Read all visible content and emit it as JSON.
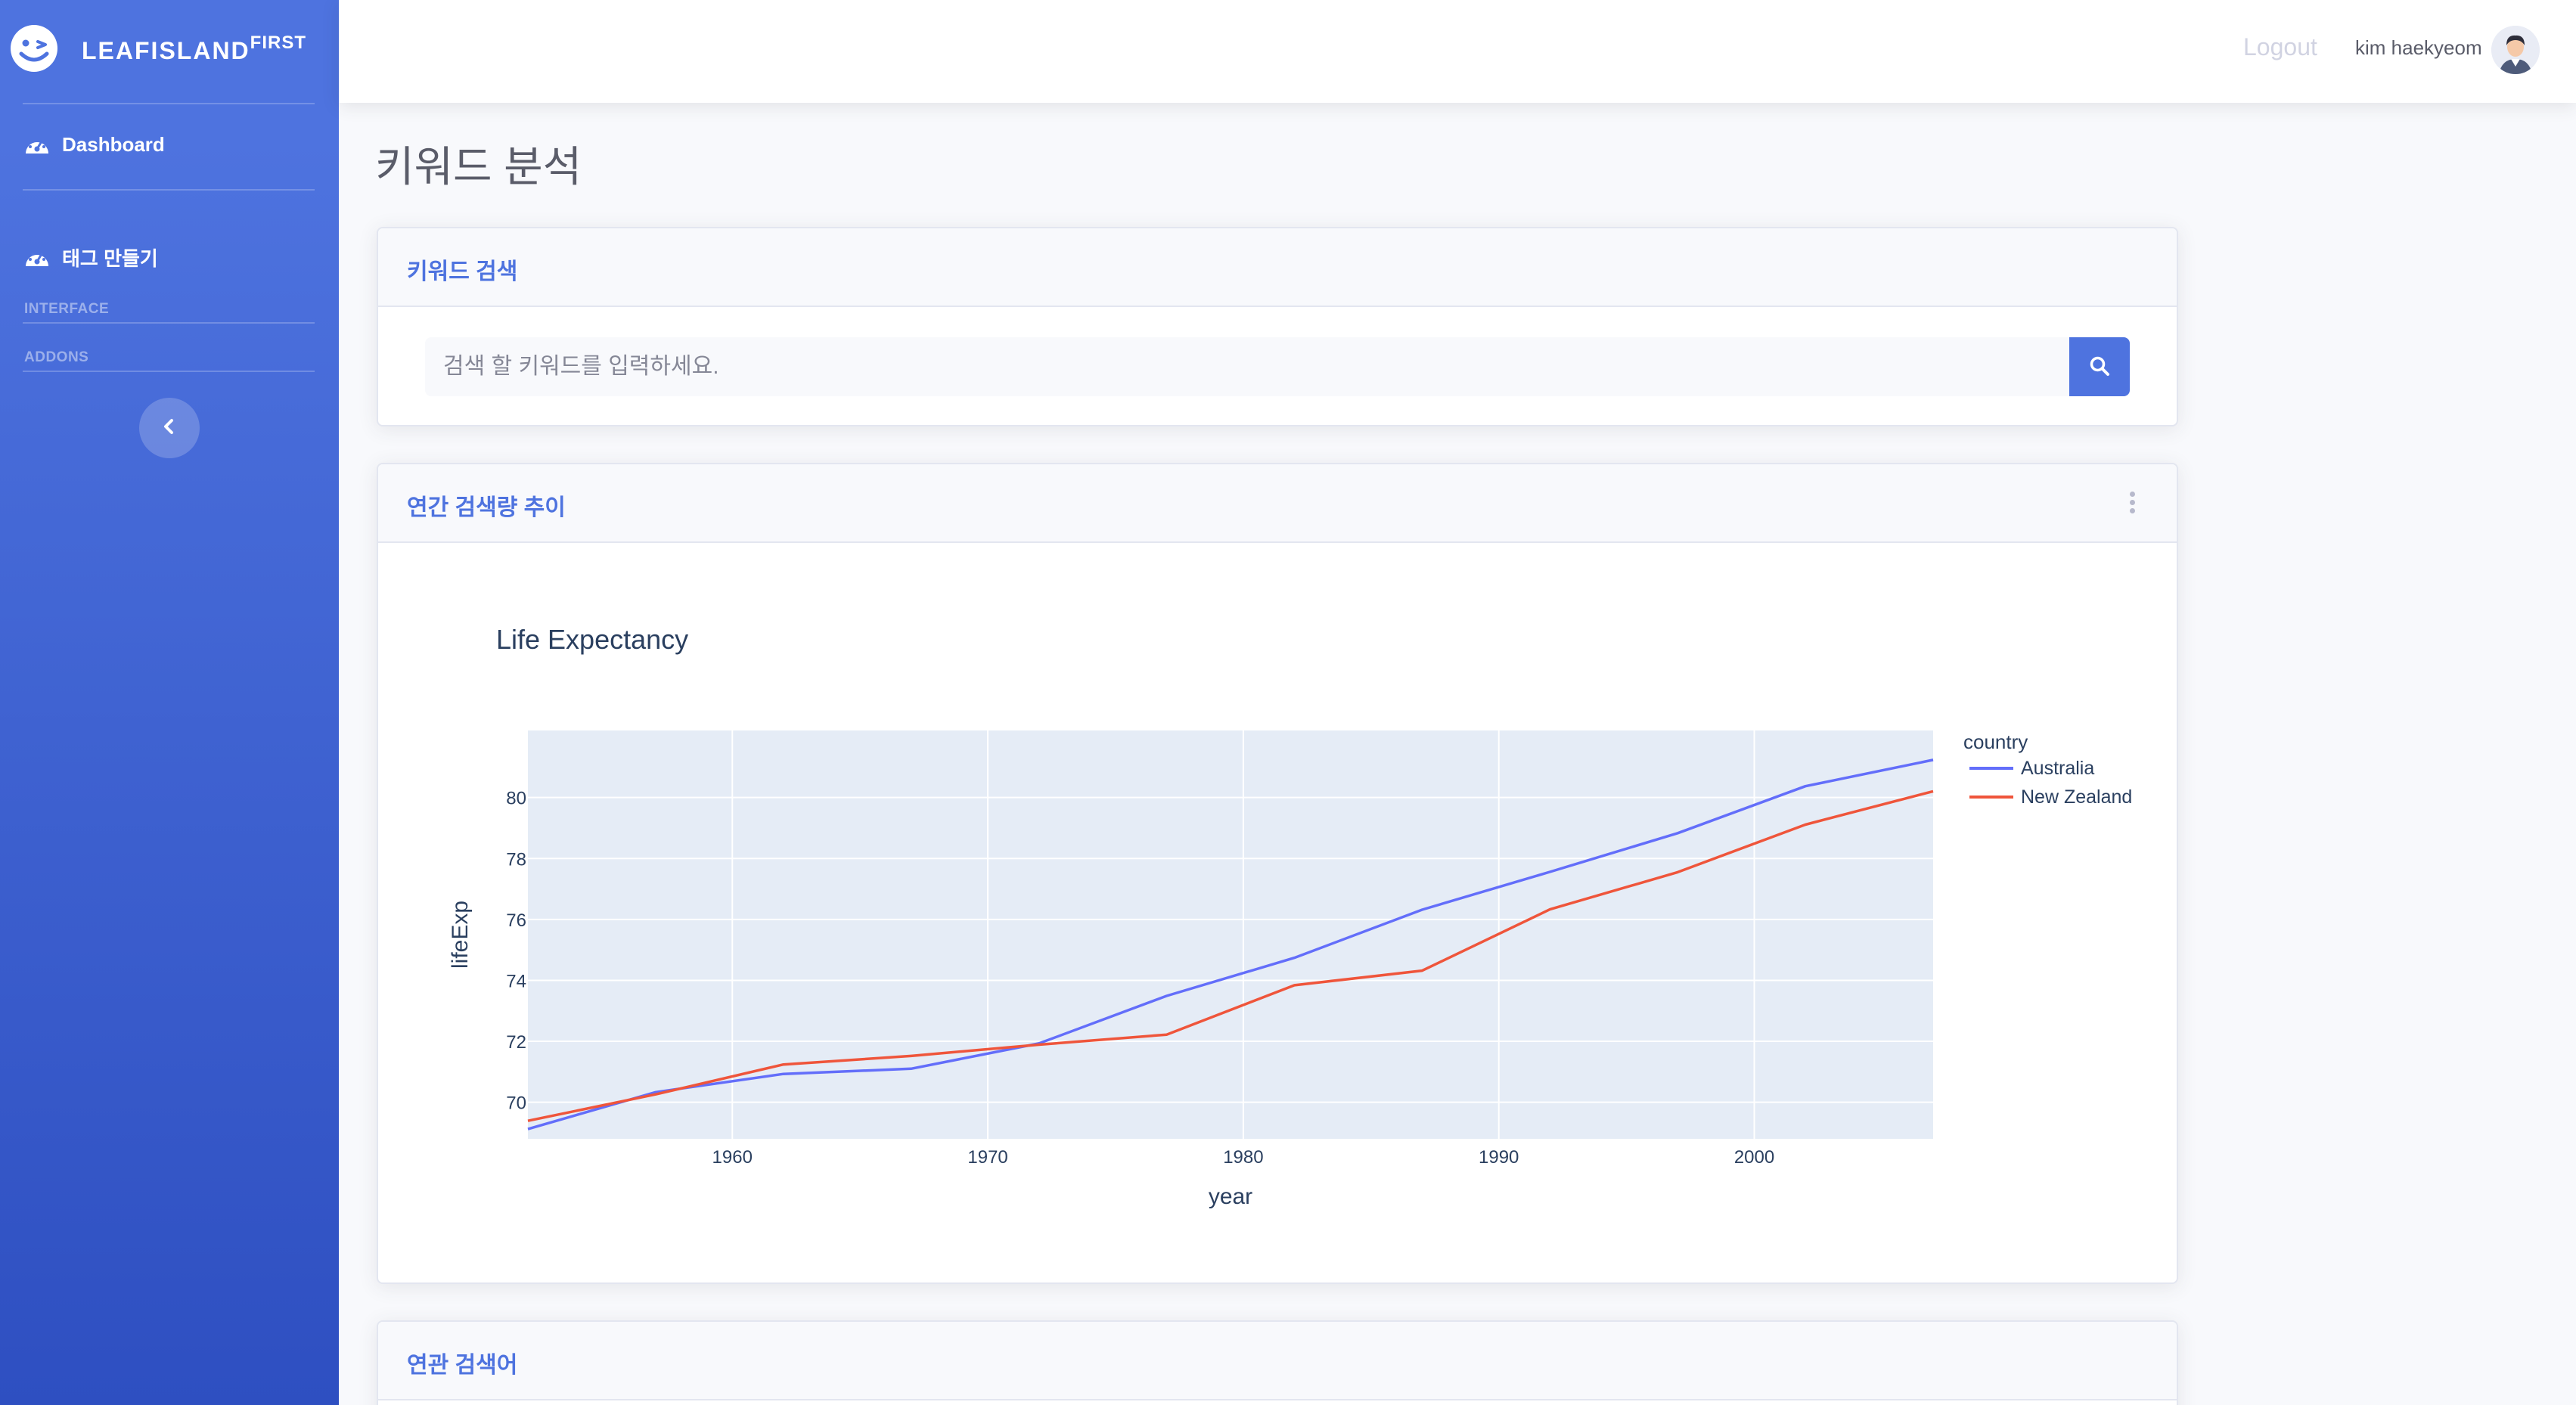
{
  "brand": {
    "name": "LEAFISLAND",
    "suffix": "FIRST"
  },
  "sidebar": {
    "items": [
      {
        "label": "Dashboard",
        "icon": "tachometer-icon"
      },
      {
        "label": "태그 만들기",
        "icon": "tachometer-icon"
      }
    ],
    "headings": [
      "INTERFACE",
      "ADDONS"
    ],
    "toggle_icon": "chevron-left-icon"
  },
  "topbar": {
    "logout": "Logout",
    "username": "kim haekyeom"
  },
  "page": {
    "title": "키워드 분석"
  },
  "search_card": {
    "title": "키워드 검색",
    "placeholder": "검색 할 키워드를 입력하세요.",
    "button_icon": "search-icon"
  },
  "trend_card": {
    "title": "연간 검색량 추이"
  },
  "related_card": {
    "title": "연관 검색어"
  },
  "colors": {
    "primary": "#4e73df",
    "australia": "#636efa",
    "new_zealand": "#ef553b",
    "plot_bg": "#e5ecf6"
  },
  "chart_data": {
    "type": "line",
    "title": "Life Expectancy",
    "xlabel": "year",
    "ylabel": "lifeExp",
    "xlim": [
      1952,
      2007
    ],
    "ylim": [
      68.8,
      82.2
    ],
    "xticks": [
      1960,
      1970,
      1980,
      1990,
      2000
    ],
    "yticks": [
      70,
      72,
      74,
      76,
      78,
      80
    ],
    "legend": {
      "title": "country",
      "position": "right"
    },
    "grid": true,
    "x": [
      1952,
      1957,
      1962,
      1967,
      1972,
      1977,
      1982,
      1987,
      1992,
      1997,
      2002,
      2007
    ],
    "series": [
      {
        "name": "Australia",
        "color": "#636efa",
        "values": [
          69.12,
          70.33,
          70.93,
          71.1,
          71.93,
          73.49,
          74.74,
          76.32,
          77.56,
          78.83,
          80.37,
          81.235
        ]
      },
      {
        "name": "New Zealand",
        "color": "#ef553b",
        "values": [
          69.39,
          70.26,
          71.24,
          71.52,
          71.89,
          72.22,
          73.84,
          74.32,
          76.33,
          77.55,
          79.11,
          80.204
        ]
      }
    ]
  }
}
